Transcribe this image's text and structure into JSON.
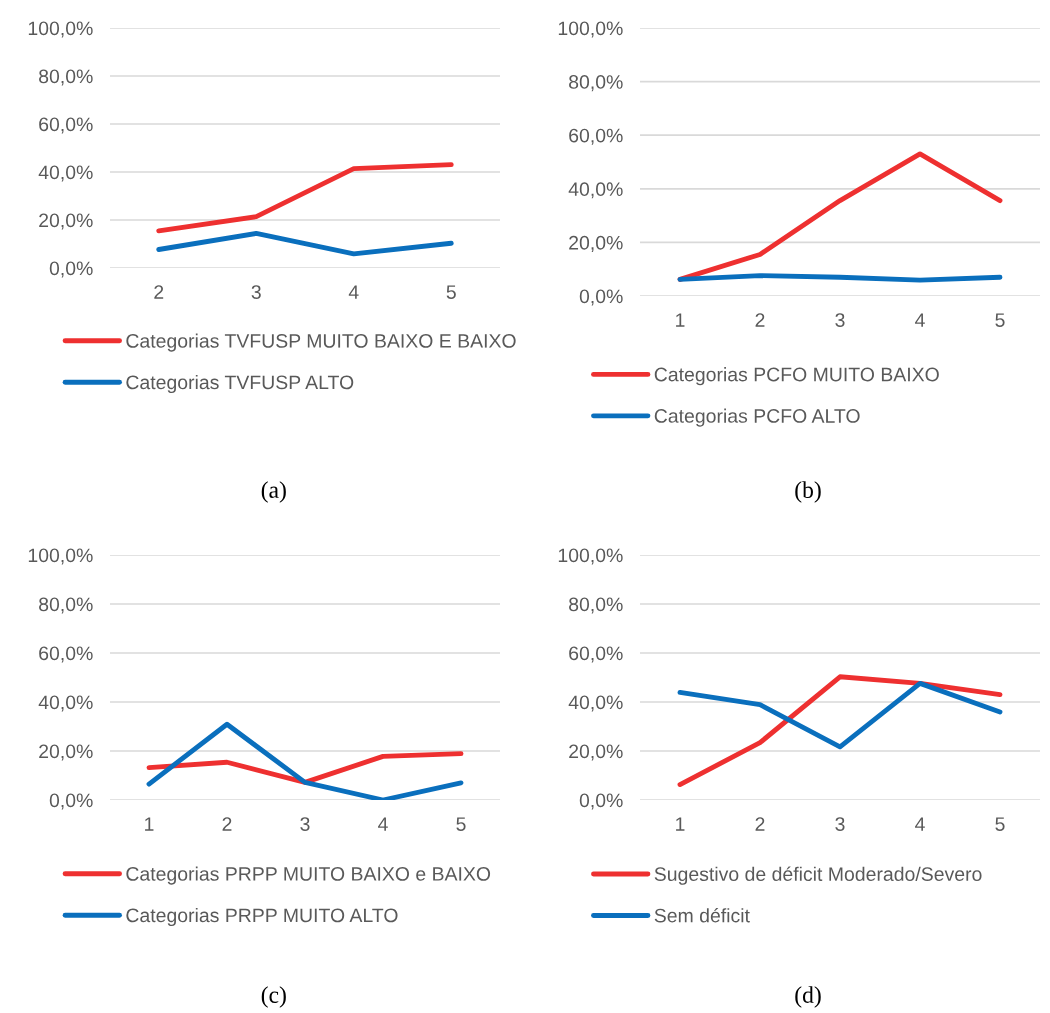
{
  "chart_data": [
    {
      "type": "line",
      "categories": [
        "2",
        "3",
        "4",
        "5"
      ],
      "ylim": [
        0,
        100
      ],
      "yticks": [
        {
          "value": 0,
          "label": "0,0%"
        },
        {
          "value": 20,
          "label": "20,0%"
        },
        {
          "value": 40,
          "label": "40,0%"
        },
        {
          "value": 60,
          "label": "60,0%"
        },
        {
          "value": 80,
          "label": "80,0%"
        },
        {
          "value": 100,
          "label": "100,0%"
        }
      ],
      "grid": "y",
      "legend": "bottom",
      "marker": "none",
      "line_style": "solid",
      "annotations": [
        "(a)"
      ],
      "series": [
        {
          "name": "Categorias TVFUSP MUITO BAIXO E BAIXO",
          "color": "#ee3030",
          "values": [
            15.5,
            21.4,
            41.4,
            43.1
          ]
        },
        {
          "name": "Categorias TVFUSP ALTO",
          "color": "#0a6fbd",
          "values": [
            7.7,
            14.4,
            5.9,
            10.3
          ]
        }
      ]
    },
    {
      "type": "line",
      "categories": [
        "1",
        "2",
        "3",
        "4",
        "5"
      ],
      "ylim": [
        0,
        100
      ],
      "yticks": [
        {
          "value": 0,
          "label": "0,0%"
        },
        {
          "value": 20,
          "label": "20,0%"
        },
        {
          "value": 40,
          "label": "40,0%"
        },
        {
          "value": 60,
          "label": "60,0%"
        },
        {
          "value": 80,
          "label": "80,0%"
        },
        {
          "value": 100,
          "label": "100,0%"
        }
      ],
      "grid": "y",
      "legend": "bottom",
      "marker": "none",
      "line_style": "solid",
      "annotations": [
        "(b)"
      ],
      "series": [
        {
          "name": "Categorias PCFO MUITO BAIXO",
          "color": "#ee3030",
          "values": [
            6.2,
            15.5,
            35.6,
            53.0,
            35.6
          ]
        },
        {
          "name": "Categorias PCFO ALTO",
          "color": "#0a6fbd",
          "values": [
            6.2,
            7.6,
            7.0,
            5.9,
            7.0
          ]
        }
      ]
    },
    {
      "type": "line",
      "categories": [
        "1",
        "2",
        "3",
        "4",
        "5"
      ],
      "ylim": [
        0,
        100
      ],
      "yticks": [
        {
          "value": 0,
          "label": "0,0%"
        },
        {
          "value": 20,
          "label": "20,0%"
        },
        {
          "value": 40,
          "label": "40,0%"
        },
        {
          "value": 60,
          "label": "60,0%"
        },
        {
          "value": 80,
          "label": "80,0%"
        },
        {
          "value": 100,
          "label": "100,0%"
        }
      ],
      "grid": "y",
      "legend": "bottom",
      "marker": "none",
      "line_style": "solid",
      "annotations": [
        "(c)"
      ],
      "series": [
        {
          "name": "Categorias PRPP MUITO BAIXO e BAIXO",
          "color": "#ee3030",
          "values": [
            13.2,
            15.4,
            7.2,
            17.8,
            18.9
          ]
        },
        {
          "name": "Categorias PRPP MUITO ALTO",
          "color": "#0a6fbd",
          "values": [
            6.5,
            30.9,
            7.2,
            0,
            7.0
          ]
        }
      ]
    },
    {
      "type": "line",
      "categories": [
        "1",
        "2",
        "3",
        "4",
        "5"
      ],
      "ylim": [
        0,
        100
      ],
      "yticks": [
        {
          "value": 0,
          "label": "0,0%"
        },
        {
          "value": 20,
          "label": "20,0%"
        },
        {
          "value": 40,
          "label": "40,0%"
        },
        {
          "value": 60,
          "label": "60,0%"
        },
        {
          "value": 80,
          "label": "80,0%"
        },
        {
          "value": 100,
          "label": "100,0%"
        }
      ],
      "grid": "y",
      "legend": "bottom",
      "marker": "none",
      "line_style": "solid",
      "annotations": [
        "(d)"
      ],
      "series": [
        {
          "name": "Sugestivo de déficit Moderado/Severo",
          "color": "#ee3030",
          "values": [
            6.3,
            23.4,
            50.3,
            47.6,
            43.0
          ]
        },
        {
          "name": "Sem déficit",
          "color": "#0a6fbd",
          "values": [
            43.9,
            38.9,
            21.7,
            47.6,
            35.9
          ]
        }
      ]
    }
  ]
}
